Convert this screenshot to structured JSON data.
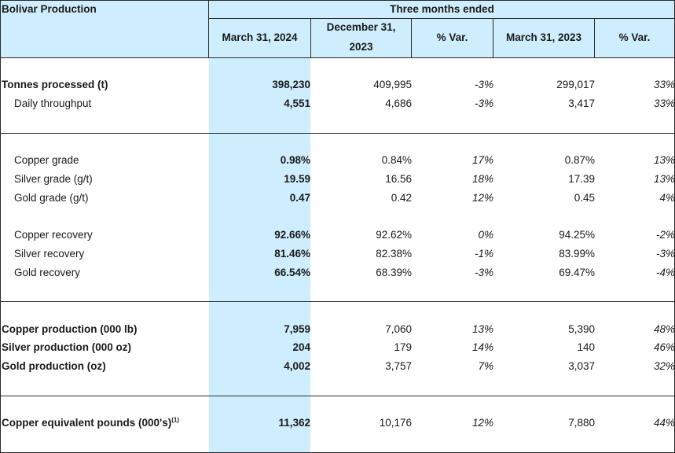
{
  "table": {
    "title": "Bolivar Production",
    "group_header": "Three months ended",
    "columns": {
      "c1": "March 31, 2024",
      "c2_line1": "December 31,",
      "c2_line2": "2023",
      "c3": "% Var.",
      "c4": "March 31, 2023",
      "c5": "% Var."
    },
    "rows": [
      {
        "label": "Tonnes processed (t)",
        "v1": "398,230",
        "v2": "409,995",
        "v3": "-3%",
        "v4": "299,017",
        "v5": "33%"
      },
      {
        "label": "Daily throughput",
        "v1": "4,551",
        "v2": "4,686",
        "v3": "-3%",
        "v4": "3,417",
        "v5": "33%"
      },
      {
        "label": "Copper grade",
        "v1": "0.98%",
        "v2": "0.84%",
        "v3": "17%",
        "v4": "0.87%",
        "v5": "13%"
      },
      {
        "label": "Silver grade (g/t)",
        "v1": "19.59",
        "v2": "16.56",
        "v3": "18%",
        "v4": "17.39",
        "v5": "13%"
      },
      {
        "label": "Gold grade (g/t)",
        "v1": "0.47",
        "v2": "0.42",
        "v3": "12%",
        "v4": "0.45",
        "v5": "4%"
      },
      {
        "label": "Copper recovery",
        "v1": "92.66%",
        "v2": "92.62%",
        "v3": "0%",
        "v4": "94.25%",
        "v5": "-2%"
      },
      {
        "label": "Silver recovery",
        "v1": "81.46%",
        "v2": "82.38%",
        "v3": "-1%",
        "v4": "83.99%",
        "v5": "-3%"
      },
      {
        "label": "Gold recovery",
        "v1": "66.54%",
        "v2": "68.39%",
        "v3": "-3%",
        "v4": "69.47%",
        "v5": "-4%"
      },
      {
        "label": "Copper production (000 lb)",
        "v1": "7,959",
        "v2": "7,060",
        "v3": "13%",
        "v4": "5,390",
        "v5": "48%"
      },
      {
        "label": "Silver production (000 oz)",
        "v1": "204",
        "v2": "179",
        "v3": "14%",
        "v4": "140",
        "v5": "46%"
      },
      {
        "label": "Gold production (oz)",
        "v1": "4,002",
        "v2": "3,757",
        "v3": "7%",
        "v4": "3,037",
        "v5": "32%"
      },
      {
        "label": "Copper equivalent pounds (000's)",
        "label_sup": "(1)",
        "v1": "11,362",
        "v2": "10,176",
        "v3": "12%",
        "v4": "7,880",
        "v5": "44%"
      }
    ]
  }
}
